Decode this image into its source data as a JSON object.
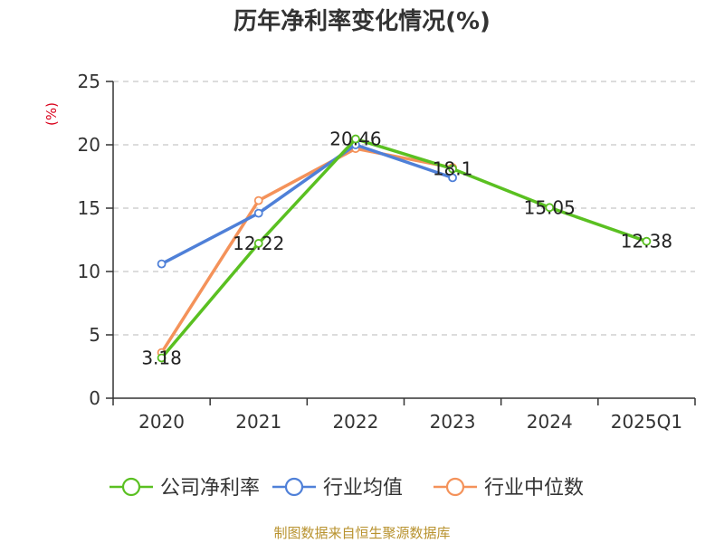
{
  "chart_data": {
    "type": "line",
    "title": "历年净利率变化情况(%)",
    "ylabel": "(%)",
    "xlabel": "",
    "categories": [
      "2020",
      "2021",
      "2022",
      "2023",
      "2024",
      "2025Q1"
    ],
    "ylim": [
      0,
      25
    ],
    "yticks": [
      0,
      5,
      10,
      15,
      20,
      25
    ],
    "grid": true,
    "legend_position": "bottom",
    "series": [
      {
        "name": "公司净利率",
        "color": "#5ac021",
        "values": [
          3.18,
          12.22,
          20.46,
          18.1,
          15.05,
          12.38
        ],
        "labels": [
          "3.18",
          "12.22",
          "20.46",
          "18.1",
          "15.05",
          "12.38"
        ]
      },
      {
        "name": "行业均值",
        "color": "#4f80d8",
        "values": [
          10.6,
          14.6,
          20.0,
          17.4,
          null,
          null
        ]
      },
      {
        "name": "行业中位数",
        "color": "#f4925a",
        "values": [
          3.6,
          15.6,
          19.7,
          18.2,
          null,
          null
        ]
      }
    ]
  },
  "footer": {
    "source": "制图数据来自恒生聚源数据库"
  }
}
